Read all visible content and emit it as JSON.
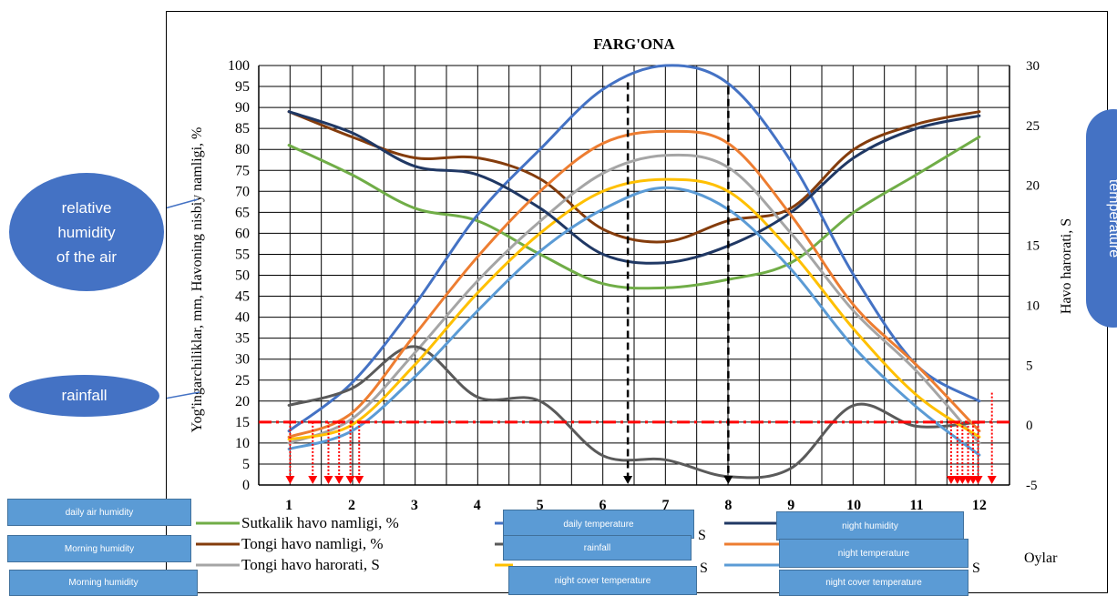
{
  "chart_data": {
    "type": "line",
    "title": "FARG'ONA",
    "ylabel_left": "Yog'ingarchiliklar, mm,  Havoning nisbiy namligi, %",
    "ylabel_right": "Havo harorati, S",
    "xlabel": "Oylar",
    "x": [
      1,
      2,
      3,
      4,
      5,
      6,
      7,
      8,
      9,
      10,
      11,
      12
    ],
    "x_ticks": [
      "1",
      "2",
      "3",
      "4",
      "5",
      "6",
      "7",
      "8",
      "9",
      "10",
      "11",
      "12"
    ],
    "ylim_left": [
      0,
      100
    ],
    "yticks_left": [
      "0",
      "5",
      "10",
      "15",
      "20",
      "25",
      "30",
      "35",
      "40",
      "45",
      "50",
      "55",
      "60",
      "65",
      "70",
      "75",
      "80",
      "85",
      "90",
      "95",
      "100"
    ],
    "ylim_right": [
      -5,
      30
    ],
    "yticks_right": [
      "-5",
      "0",
      "5",
      "10",
      "15",
      "20",
      "25",
      "30"
    ],
    "grid": true,
    "legend_position": "bottom",
    "series": [
      {
        "name": "Sutkalik havo namligi, %",
        "axis": "left",
        "color": "#70ad47",
        "values": [
          81,
          74,
          66,
          63,
          55,
          48,
          47,
          49,
          53,
          65,
          74,
          83
        ]
      },
      {
        "name": "Tongi havo namligi, %",
        "axis": "left",
        "color": "#843c0c",
        "values": [
          89,
          83,
          78,
          78,
          73,
          61,
          58,
          63,
          66,
          80,
          86,
          89
        ]
      },
      {
        "name": "Tongi havo harorati, S",
        "axis": "right",
        "color": "#a5a5a5",
        "values": [
          -1.5,
          0.5,
          6,
          12,
          17,
          21,
          22.5,
          21.5,
          16,
          9.5,
          4.5,
          -1.5
        ]
      },
      {
        "name": "",
        "axis": "right",
        "color": "#4472c4",
        "values": [
          -0.5,
          3.5,
          10,
          17.5,
          23,
          28,
          30,
          28.5,
          22,
          12.5,
          5,
          2
        ]
      },
      {
        "name": "",
        "axis": "left",
        "color": "#5a5a5a",
        "values": [
          19,
          23,
          33,
          21,
          20,
          7,
          6,
          2,
          4,
          19,
          14,
          15
        ]
      },
      {
        "name": "",
        "axis": "right",
        "color": "#ffc000",
        "values": [
          -1.2,
          0,
          5,
          11,
          16,
          19.5,
          20.5,
          19.5,
          14.5,
          8,
          2.5,
          -1
        ]
      },
      {
        "name": "",
        "axis": "left",
        "color": "#203864",
        "values": [
          89,
          84,
          76,
          74,
          66,
          55,
          53,
          57,
          65,
          78,
          85,
          88
        ]
      },
      {
        "name": "",
        "axis": "right",
        "color": "#ed7d31",
        "values": [
          -1,
          1,
          7.5,
          14,
          19.5,
          23.5,
          24.5,
          23.5,
          17.5,
          10,
          5,
          -0.5
        ]
      },
      {
        "name": "",
        "axis": "right",
        "color": "#5b9bd5",
        "values": [
          -2,
          -0.5,
          4,
          9.5,
          14.5,
          18,
          19.8,
          18,
          13,
          6.5,
          1.5,
          -2.5
        ]
      }
    ],
    "reference_line": {
      "axis": "left",
      "value": 15,
      "color": "#ff0000",
      "style": "dash-dot"
    },
    "markers": {
      "black_vertical_at_x": [
        6.4,
        8
      ],
      "red_arrow_groups": "months 1-2 and 11.5-12"
    }
  },
  "annotations": {
    "humidity_bubble": "relative humidity of the air",
    "humidity_bubble_lines": [
      "relative",
      "humidity",
      "of the air"
    ],
    "rainfall_bubble": "rainfall",
    "temperature_bubble": "temperature"
  },
  "tags": {
    "daily_air_humidity": "daily air humidity",
    "morning_humidity_1": "Morning humidity",
    "morning_humidity_2": "Morning humidity",
    "daily_temperature": "daily temperature",
    "rainfall": "rainfall",
    "night_cover_temperature_1": "night cover temperature",
    "night_humidity": "night humidity",
    "night_temperature": "night temperature",
    "night_cover_temperature_2": "night cover temperature"
  },
  "legend_fragments": {
    "s_1": "S",
    "s_2": "S",
    "s_3": "S"
  }
}
